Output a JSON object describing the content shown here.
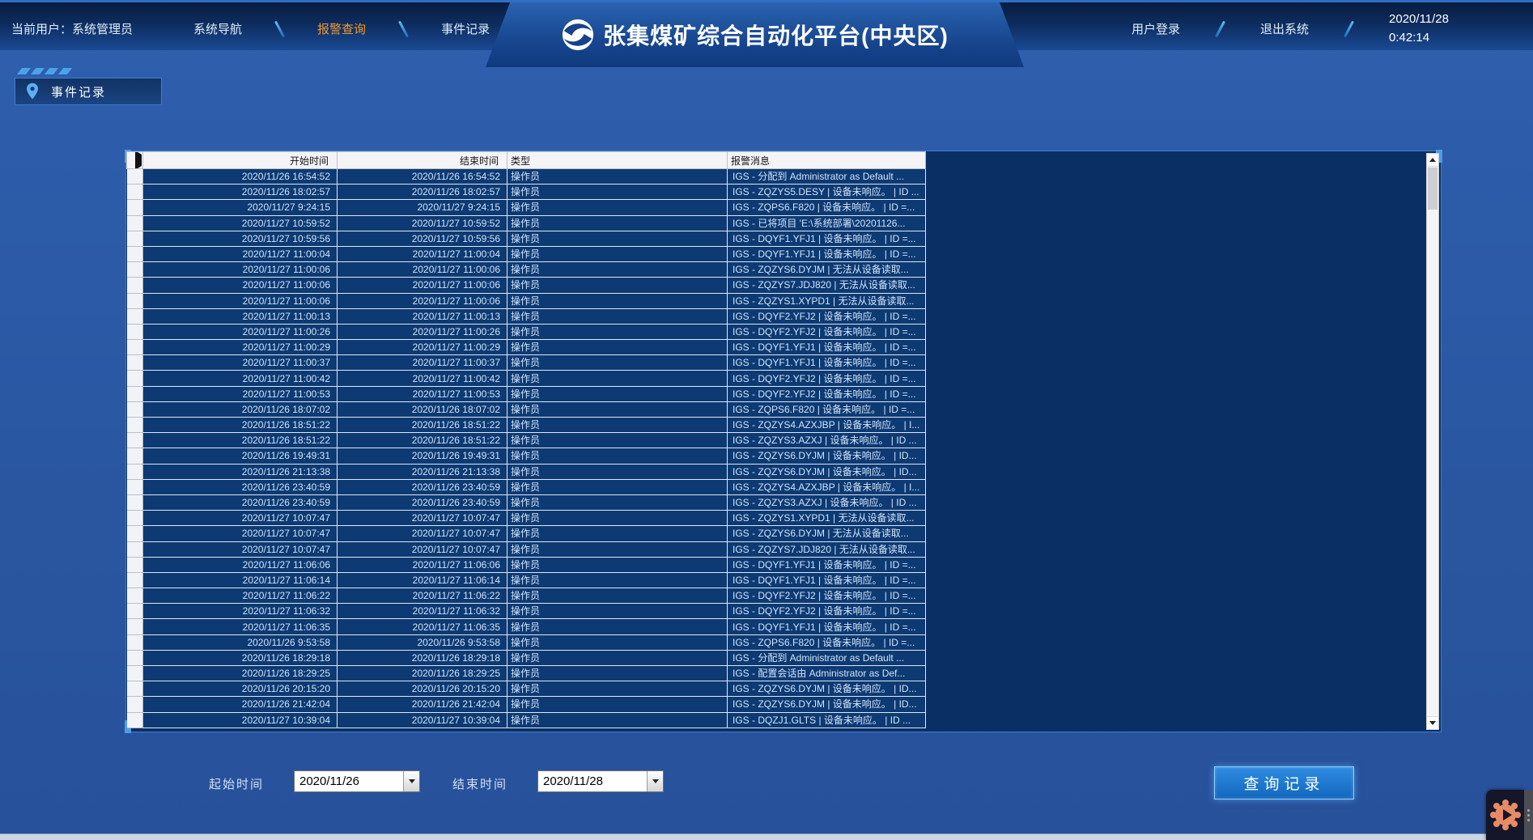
{
  "header": {
    "current_user_prefix": "当前用户：",
    "current_user": "系统管理员",
    "nav_system": "系统导航",
    "nav_alarm": "报警查询",
    "nav_event": "事件记录",
    "title": "张集煤矿综合自动化平台(中央区)",
    "user_login": "用户登录",
    "logout": "退出系统",
    "date": "2020/11/28",
    "time": "0:42:14"
  },
  "tab": {
    "label": "事件记录"
  },
  "table": {
    "columns": [
      "开始时间",
      "结束时间",
      "类型",
      "报警消息"
    ],
    "rows": [
      [
        "2020/11/26 16:54:52",
        "2020/11/26 16:54:52",
        "操作员",
        "IGS - 分配到 Administrator as Default ..."
      ],
      [
        "2020/11/26 18:02:57",
        "2020/11/26 18:02:57",
        "操作员",
        "IGS - ZQZYS5.DESY | 设备未响应。 | ID ..."
      ],
      [
        "2020/11/27 9:24:15",
        "2020/11/27 9:24:15",
        "操作员",
        "IGS - ZQPS6.F820 | 设备未响应。 | ID =..."
      ],
      [
        "2020/11/27 10:59:52",
        "2020/11/27 10:59:52",
        "操作员",
        "IGS - 已将项目 'E:\\系统部署\\20201126..."
      ],
      [
        "2020/11/27 10:59:56",
        "2020/11/27 10:59:56",
        "操作员",
        "IGS - DQYF1.YFJ1 | 设备未响应。 | ID =..."
      ],
      [
        "2020/11/27 11:00:04",
        "2020/11/27 11:00:04",
        "操作员",
        "IGS - DQYF1.YFJ1 | 设备未响应。 | ID =..."
      ],
      [
        "2020/11/27 11:00:06",
        "2020/11/27 11:00:06",
        "操作员",
        "IGS - ZQZYS6.DYJM | 无法从设备读取..."
      ],
      [
        "2020/11/27 11:00:06",
        "2020/11/27 11:00:06",
        "操作员",
        "IGS - ZQZYS7.JDJ820 | 无法从设备读取..."
      ],
      [
        "2020/11/27 11:00:06",
        "2020/11/27 11:00:06",
        "操作员",
        "IGS - ZQZYS1.XYPD1 | 无法从设备读取..."
      ],
      [
        "2020/11/27 11:00:13",
        "2020/11/27 11:00:13",
        "操作员",
        "IGS - DQYF2.YFJ2 | 设备未响应。 | ID =..."
      ],
      [
        "2020/11/27 11:00:26",
        "2020/11/27 11:00:26",
        "操作员",
        "IGS - DQYF2.YFJ2 | 设备未响应。 | ID =..."
      ],
      [
        "2020/11/27 11:00:29",
        "2020/11/27 11:00:29",
        "操作员",
        "IGS - DQYF1.YFJ1 | 设备未响应。 | ID =..."
      ],
      [
        "2020/11/27 11:00:37",
        "2020/11/27 11:00:37",
        "操作员",
        "IGS - DQYF1.YFJ1 | 设备未响应。 | ID =..."
      ],
      [
        "2020/11/27 11:00:42",
        "2020/11/27 11:00:42",
        "操作员",
        "IGS - DQYF2.YFJ2 | 设备未响应。 | ID =..."
      ],
      [
        "2020/11/27 11:00:53",
        "2020/11/27 11:00:53",
        "操作员",
        "IGS - DQYF2.YFJ2 | 设备未响应。 | ID =..."
      ],
      [
        "2020/11/26 18:07:02",
        "2020/11/26 18:07:02",
        "操作员",
        "IGS - ZQPS6.F820 | 设备未响应。 | ID =..."
      ],
      [
        "2020/11/26 18:51:22",
        "2020/11/26 18:51:22",
        "操作员",
        "IGS - ZQZYS4.AZXJBP | 设备未响应。 | I..."
      ],
      [
        "2020/11/26 18:51:22",
        "2020/11/26 18:51:22",
        "操作员",
        "IGS - ZQZYS3.AZXJ | 设备未响应。 | ID ..."
      ],
      [
        "2020/11/26 19:49:31",
        "2020/11/26 19:49:31",
        "操作员",
        "IGS - ZQZYS6.DYJM | 设备未响应。 | ID..."
      ],
      [
        "2020/11/26 21:13:38",
        "2020/11/26 21:13:38",
        "操作员",
        "IGS - ZQZYS6.DYJM | 设备未响应。 | ID..."
      ],
      [
        "2020/11/26 23:40:59",
        "2020/11/26 23:40:59",
        "操作员",
        "IGS - ZQZYS4.AZXJBP | 设备未响应。 | I..."
      ],
      [
        "2020/11/26 23:40:59",
        "2020/11/26 23:40:59",
        "操作员",
        "IGS - ZQZYS3.AZXJ | 设备未响应。 | ID ..."
      ],
      [
        "2020/11/27 10:07:47",
        "2020/11/27 10:07:47",
        "操作员",
        "IGS - ZQZYS1.XYPD1 | 无法从设备读取..."
      ],
      [
        "2020/11/27 10:07:47",
        "2020/11/27 10:07:47",
        "操作员",
        "IGS - ZQZYS6.DYJM | 无法从设备读取..."
      ],
      [
        "2020/11/27 10:07:47",
        "2020/11/27 10:07:47",
        "操作员",
        "IGS - ZQZYS7.JDJ820 | 无法从设备读取..."
      ],
      [
        "2020/11/27 11:06:06",
        "2020/11/27 11:06:06",
        "操作员",
        "IGS - DQYF1.YFJ1 | 设备未响应。 | ID =..."
      ],
      [
        "2020/11/27 11:06:14",
        "2020/11/27 11:06:14",
        "操作员",
        "IGS - DQYF1.YFJ1 | 设备未响应。 | ID =..."
      ],
      [
        "2020/11/27 11:06:22",
        "2020/11/27 11:06:22",
        "操作员",
        "IGS - DQYF2.YFJ2 | 设备未响应。 | ID =..."
      ],
      [
        "2020/11/27 11:06:32",
        "2020/11/27 11:06:32",
        "操作员",
        "IGS - DQYF2.YFJ2 | 设备未响应。 | ID =..."
      ],
      [
        "2020/11/27 11:06:35",
        "2020/11/27 11:06:35",
        "操作员",
        "IGS - DQYF1.YFJ1 | 设备未响应。 | ID =..."
      ],
      [
        "2020/11/26 9:53:58",
        "2020/11/26 9:53:58",
        "操作员",
        "IGS - ZQPS6.F820 | 设备未响应。 | ID =..."
      ],
      [
        "2020/11/26 18:29:18",
        "2020/11/26 18:29:18",
        "操作员",
        "IGS - 分配到 Administrator as Default ..."
      ],
      [
        "2020/11/26 18:29:25",
        "2020/11/26 18:29:25",
        "操作员",
        "IGS - 配置会话由 Administrator as Def..."
      ],
      [
        "2020/11/26 20:15:20",
        "2020/11/26 20:15:20",
        "操作员",
        "IGS - ZQZYS6.DYJM | 设备未响应。 | ID..."
      ],
      [
        "2020/11/26 21:42:04",
        "2020/11/26 21:42:04",
        "操作员",
        "IGS - ZQZYS6.DYJM | 设备未响应。 | ID..."
      ],
      [
        "2020/11/27 10:39:04",
        "2020/11/27 10:39:04",
        "操作员",
        "IGS - DQZJ1.GLTS | 设备未响应。 | ID ..."
      ]
    ]
  },
  "footer": {
    "start_label": "起始时间",
    "start_value": "2020/11/26",
    "end_label": "结束时间",
    "end_value": "2020/11/28",
    "query_button": "查询记录"
  },
  "colors": {
    "accent_orange": "#f0992e",
    "panel_navy": "#0a2f64",
    "row_navy": "#0d3a73",
    "button_blue": "#1b7fd4",
    "page_blue": "#2b59a5"
  }
}
